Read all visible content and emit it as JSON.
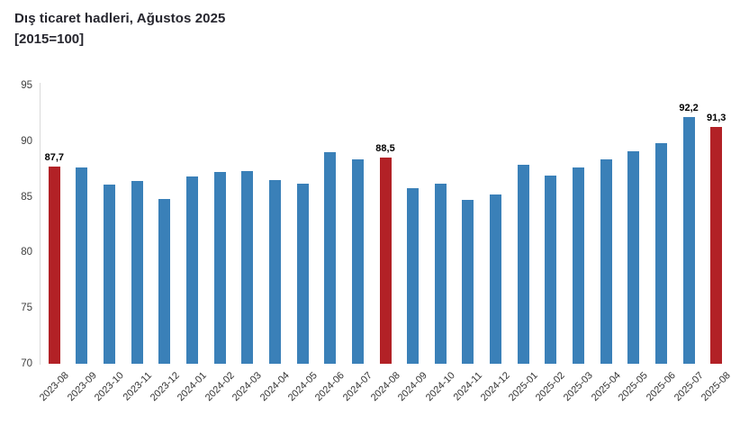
{
  "page": {
    "title": "Dış ticaret hadleri, Ağustos 2025",
    "subtitle": "[2015=100]"
  },
  "colors": {
    "bar_default": "#3a80b8",
    "bar_highlight": "#b22126",
    "axis_line": "#d9d9d9",
    "tick_text": "#404040",
    "title_text": "#26262e",
    "data_label_text": "#000000"
  },
  "chart_data": {
    "type": "bar",
    "title": "Dış ticaret hadleri, Ağustos 2025",
    "subtitle": "[2015=100]",
    "xlabel": "",
    "ylabel": "",
    "ylim": [
      70,
      95
    ],
    "y_ticks": [
      95,
      90,
      85,
      80,
      75,
      70
    ],
    "grid": false,
    "legend": null,
    "categories": [
      "2023-08",
      "2023-09",
      "2023-10",
      "2023-11",
      "2023-12",
      "2024-01",
      "2024-02",
      "2024-03",
      "2024-04",
      "2024-05",
      "2024-06",
      "2024-07",
      "2024-08",
      "2024-09",
      "2024-10",
      "2024-11",
      "2024-12",
      "2025-01",
      "2025-02",
      "2025-03",
      "2025-04",
      "2025-05",
      "2025-06",
      "2025-07",
      "2025-08"
    ],
    "values": [
      87.7,
      87.6,
      86.1,
      86.4,
      84.8,
      86.8,
      87.2,
      87.3,
      86.5,
      86.2,
      89.0,
      88.4,
      88.5,
      85.8,
      86.2,
      84.7,
      85.2,
      87.9,
      86.9,
      87.6,
      88.4,
      89.1,
      89.8,
      92.2,
      91.3
    ],
    "highlight_indices": [
      0,
      12,
      24
    ],
    "data_labels": {
      "0": "87,7",
      "12": "88,5",
      "23": "92,2",
      "24": "91,3"
    }
  }
}
